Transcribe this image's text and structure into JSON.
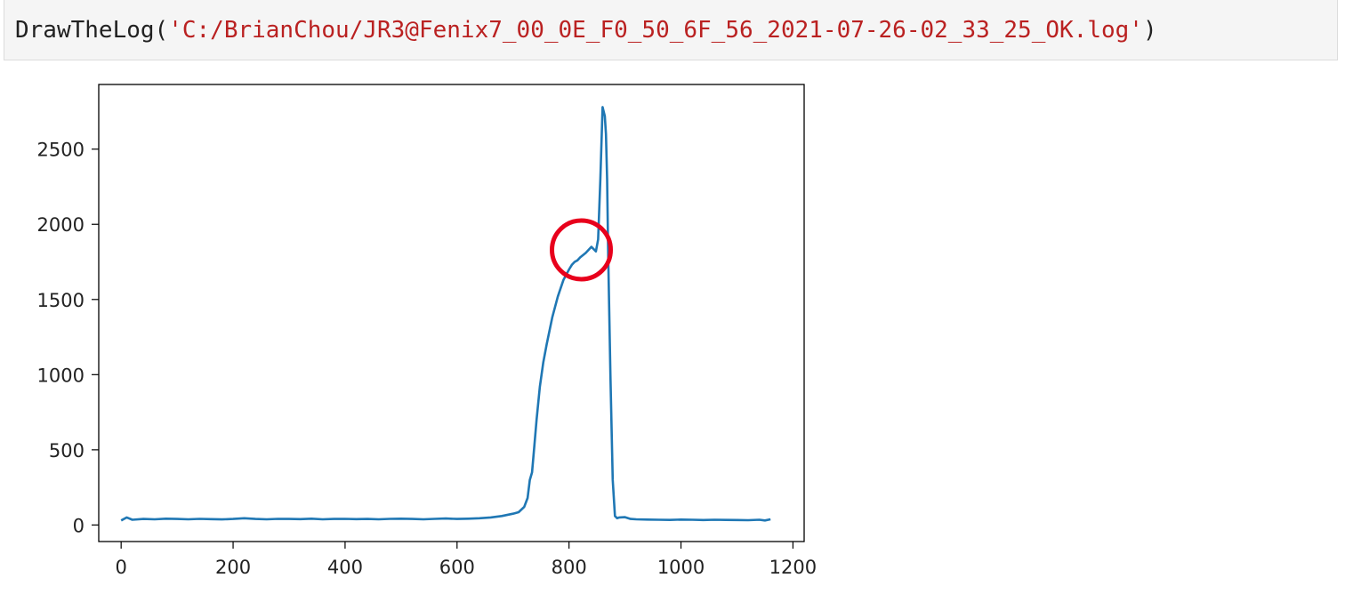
{
  "code_cell": {
    "function_name": "DrawTheLog",
    "open_paren": "(",
    "string_arg": "'C:/BrianChou/JR3@Fenix7_00_0E_F0_50_6F_56_2021-07-26-02_33_25_OK.log'",
    "close_paren": ")"
  },
  "colors": {
    "line": "#1f77b4",
    "annotation_circle": "#e8001c",
    "code_string": "#ba2121",
    "cell_background": "#f5f5f5"
  },
  "chart_data": {
    "type": "line",
    "title": "",
    "xlabel": "",
    "ylabel": "",
    "xlim": [
      -40,
      1220
    ],
    "ylim": [
      -110,
      2930
    ],
    "x_ticks": [
      0,
      200,
      400,
      600,
      800,
      1000,
      1200
    ],
    "x_tick_labels": [
      "0",
      "200",
      "400",
      "600",
      "800",
      "1000",
      "1200"
    ],
    "y_ticks": [
      0,
      500,
      1000,
      1500,
      2000,
      2500
    ],
    "y_tick_labels": [
      "0",
      "500",
      "1000",
      "1500",
      "2000",
      "2500"
    ],
    "grid": false,
    "legend": "none",
    "series": [
      {
        "x": [
          0,
          10,
          20,
          40,
          60,
          80,
          100,
          120,
          140,
          160,
          180,
          200,
          220,
          240,
          260,
          280,
          300,
          320,
          340,
          360,
          380,
          400,
          420,
          440,
          460,
          480,
          500,
          520,
          540,
          560,
          580,
          600,
          620,
          640,
          660,
          680,
          700,
          710,
          720,
          726,
          730,
          734,
          738,
          742,
          748,
          754,
          760,
          770,
          780,
          790,
          800,
          805,
          810,
          815,
          820,
          830,
          840,
          848,
          852,
          856,
          860,
          864,
          866,
          868,
          870,
          874,
          878,
          882,
          886,
          890,
          900,
          910,
          920,
          940,
          960,
          980,
          1000,
          1020,
          1040,
          1060,
          1080,
          1100,
          1120,
          1140,
          1150,
          1160
        ],
        "y": [
          30,
          50,
          35,
          40,
          38,
          42,
          40,
          38,
          41,
          39,
          37,
          40,
          45,
          40,
          38,
          41,
          40,
          39,
          42,
          38,
          40,
          41,
          39,
          40,
          38,
          41,
          42,
          40,
          38,
          41,
          43,
          40,
          42,
          45,
          50,
          60,
          75,
          85,
          120,
          180,
          300,
          350,
          520,
          700,
          920,
          1080,
          1200,
          1380,
          1520,
          1630,
          1700,
          1730,
          1750,
          1760,
          1780,
          1810,
          1850,
          1820,
          1900,
          2300,
          2780,
          2720,
          2600,
          2300,
          1800,
          1000,
          300,
          60,
          45,
          50,
          52,
          40,
          38,
          36,
          35,
          34,
          36,
          35,
          33,
          35,
          34,
          33,
          32,
          35,
          30,
          38
        ]
      }
    ],
    "annotation": {
      "type": "circle",
      "center_x": 822,
      "center_y": 1830
    }
  }
}
